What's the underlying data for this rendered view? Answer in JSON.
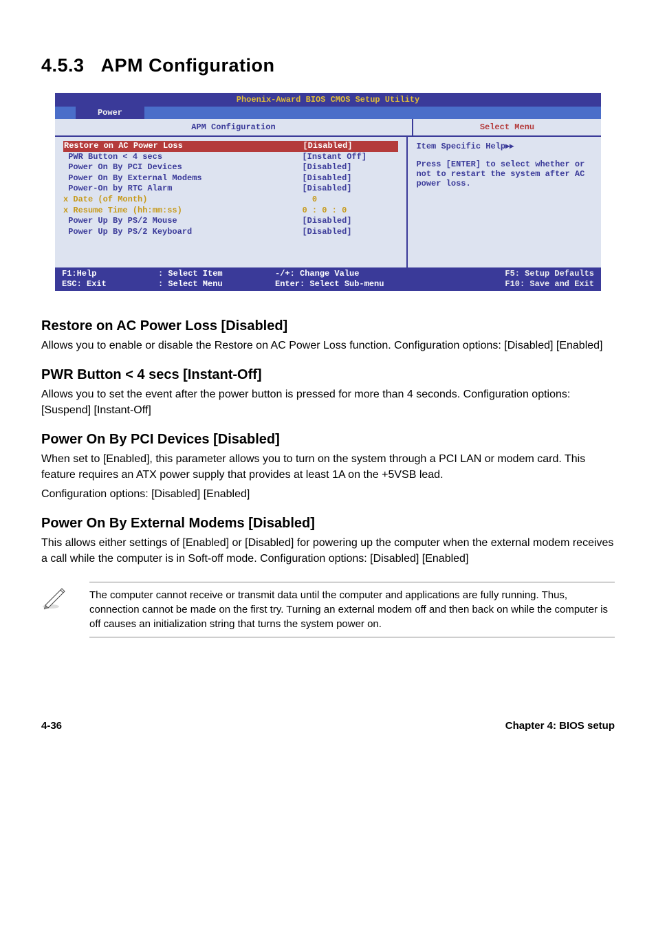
{
  "section": {
    "number": "4.5.3",
    "title": "APM Configuration"
  },
  "bios": {
    "title": "Phoenix-Award BIOS CMOS Setup Utility",
    "tab": "Power",
    "hdr_left": "APM Configuration",
    "hdr_right": "Select Menu",
    "rows": [
      {
        "label": "Restore on AC Power Loss",
        "value": "[Disabled]",
        "label_cls": "highlight",
        "value_cls": "highlight"
      },
      {
        "label": " PWR Button < 4 secs",
        "value": "[Instant Off]",
        "value_cls": ""
      },
      {
        "label": " Power On By PCI Devices",
        "value": "[Disabled]",
        "value_cls": ""
      },
      {
        "label": " Power On By External Modems",
        "value": "[Disabled]",
        "value_cls": ""
      },
      {
        "label": " Power-On by RTC Alarm",
        "value": "[Disabled]",
        "value_cls": ""
      },
      {
        "label": "x Date (of Month)",
        "value": "  0",
        "label_cls": "yellow",
        "value_cls": "yellow"
      },
      {
        "label": "x Resume Time (hh:mm:ss)",
        "value": "0 : 0 : 0",
        "label_cls": "yellow",
        "value_cls": "yellow"
      },
      {
        "label": " Power Up By PS/2 Mouse",
        "value": "[Disabled]",
        "value_cls": ""
      },
      {
        "label": " Power Up By PS/2 Keyboard",
        "value": "[Disabled]",
        "value_cls": ""
      }
    ],
    "help_title": "Item Specific Help",
    "help_body": "Press [ENTER] to select whether or not to restart the system after AC power loss.",
    "footer": {
      "f1": "F1:Help",
      "esc": "ESC: Exit",
      "sel_item": ": Select Item",
      "sel_menu": ": Select Menu",
      "change": " -/+: Change Value",
      "enter": "Enter: Select Sub-menu",
      "f5": "F5: Setup Defaults",
      "f10": "F10: Save and Exit"
    }
  },
  "h1": {
    "title": "Restore on AC Power Loss [Disabled]"
  },
  "p1": "Allows you to enable or disable the Restore on AC Power Loss function. Configuration options: [Disabled] [Enabled]",
  "h2": {
    "title": "PWR Button < 4 secs [Instant-Off]"
  },
  "p2": "Allows you to set the event after the power button is pressed for more than 4 seconds. Configuration options: [Suspend] [Instant-Off]",
  "h3": {
    "title": "Power On By PCI Devices [Disabled]"
  },
  "p3": "When set to [Enabled], this parameter allows you to turn on the system through a PCI LAN or modem card. This feature requires an ATX power supply that provides at least 1A on the +5VSB lead.",
  "p3b": "Configuration options: [Disabled] [Enabled]",
  "h4": {
    "title": "Power On By External Modems [Disabled]"
  },
  "p4": "This allows either settings of [Enabled] or [Disabled] for powering up the computer when the external modem receives a call while the computer is in Soft-off mode. Configuration options: [Disabled] [Enabled]",
  "note": "The computer cannot receive or transmit data until the computer and applications are fully running. Thus, connection cannot be made on the first try. Turning an external modem off and then back on while the computer is off causes an initialization string that turns the system power on.",
  "footer": {
    "page": "4-36",
    "chapter": "Chapter 4: BIOS setup"
  }
}
